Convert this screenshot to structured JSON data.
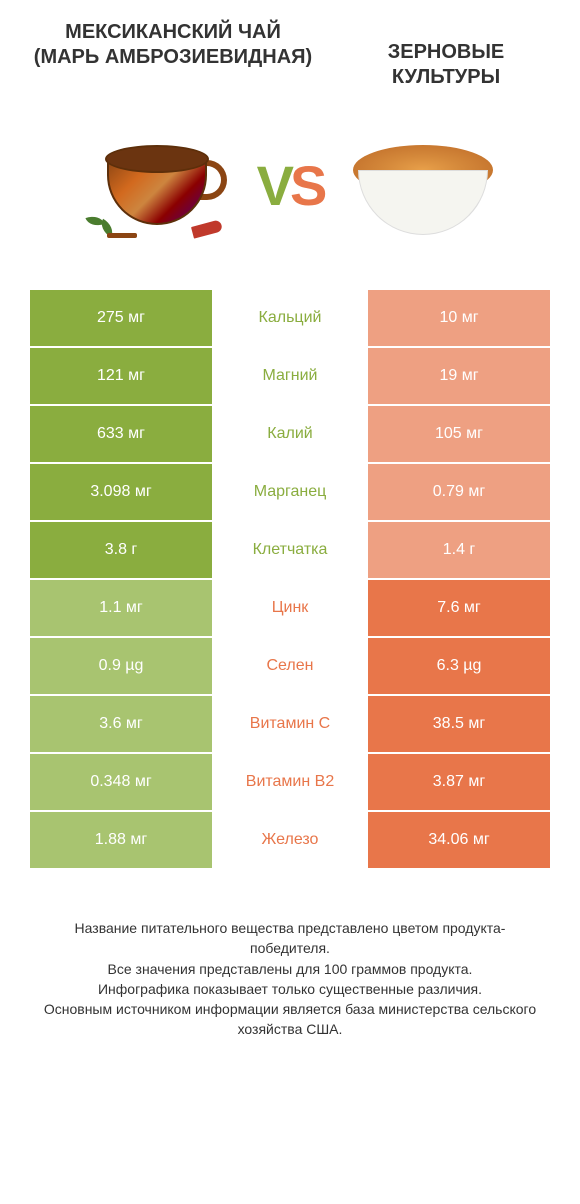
{
  "colors": {
    "left": "#8aad3f",
    "right": "#e8764a",
    "leftLight": "#a8c470",
    "rightLight": "#eea082"
  },
  "titleLeft": "МЕКСИКАНСКИЙ ЧАЙ (МАРЬ АМБРОЗИЕВИДНАЯ)",
  "titleRight": "ЗЕРНОВЫЕ КУЛЬТУРЫ",
  "vs": {
    "v": "V",
    "s": "S"
  },
  "rows": [
    {
      "label": "Кальций",
      "left": "275 мг",
      "right": "10 мг",
      "winner": "left"
    },
    {
      "label": "Магний",
      "left": "121 мг",
      "right": "19 мг",
      "winner": "left"
    },
    {
      "label": "Калий",
      "left": "633 мг",
      "right": "105 мг",
      "winner": "left"
    },
    {
      "label": "Марганец",
      "left": "3.098 мг",
      "right": "0.79 мг",
      "winner": "left"
    },
    {
      "label": "Клетчатка",
      "left": "3.8 г",
      "right": "1.4 г",
      "winner": "left"
    },
    {
      "label": "Цинк",
      "left": "1.1 мг",
      "right": "7.6 мг",
      "winner": "right"
    },
    {
      "label": "Селен",
      "left": "0.9 µg",
      "right": "6.3 µg",
      "winner": "right"
    },
    {
      "label": "Витамин C",
      "left": "3.6 мг",
      "right": "38.5 мг",
      "winner": "right"
    },
    {
      "label": "Витамин B2",
      "left": "0.348 мг",
      "right": "3.87 мг",
      "winner": "right"
    },
    {
      "label": "Железо",
      "left": "1.88 мг",
      "right": "34.06 мг",
      "winner": "right"
    }
  ],
  "footer": "Название питательного вещества представлено цветом продукта-победителя.\nВсе значения представлены для 100 граммов продукта.\nИнфографика показывает только существенные различия.\nОсновным источником информации является база министерства сельского хозяйства США."
}
